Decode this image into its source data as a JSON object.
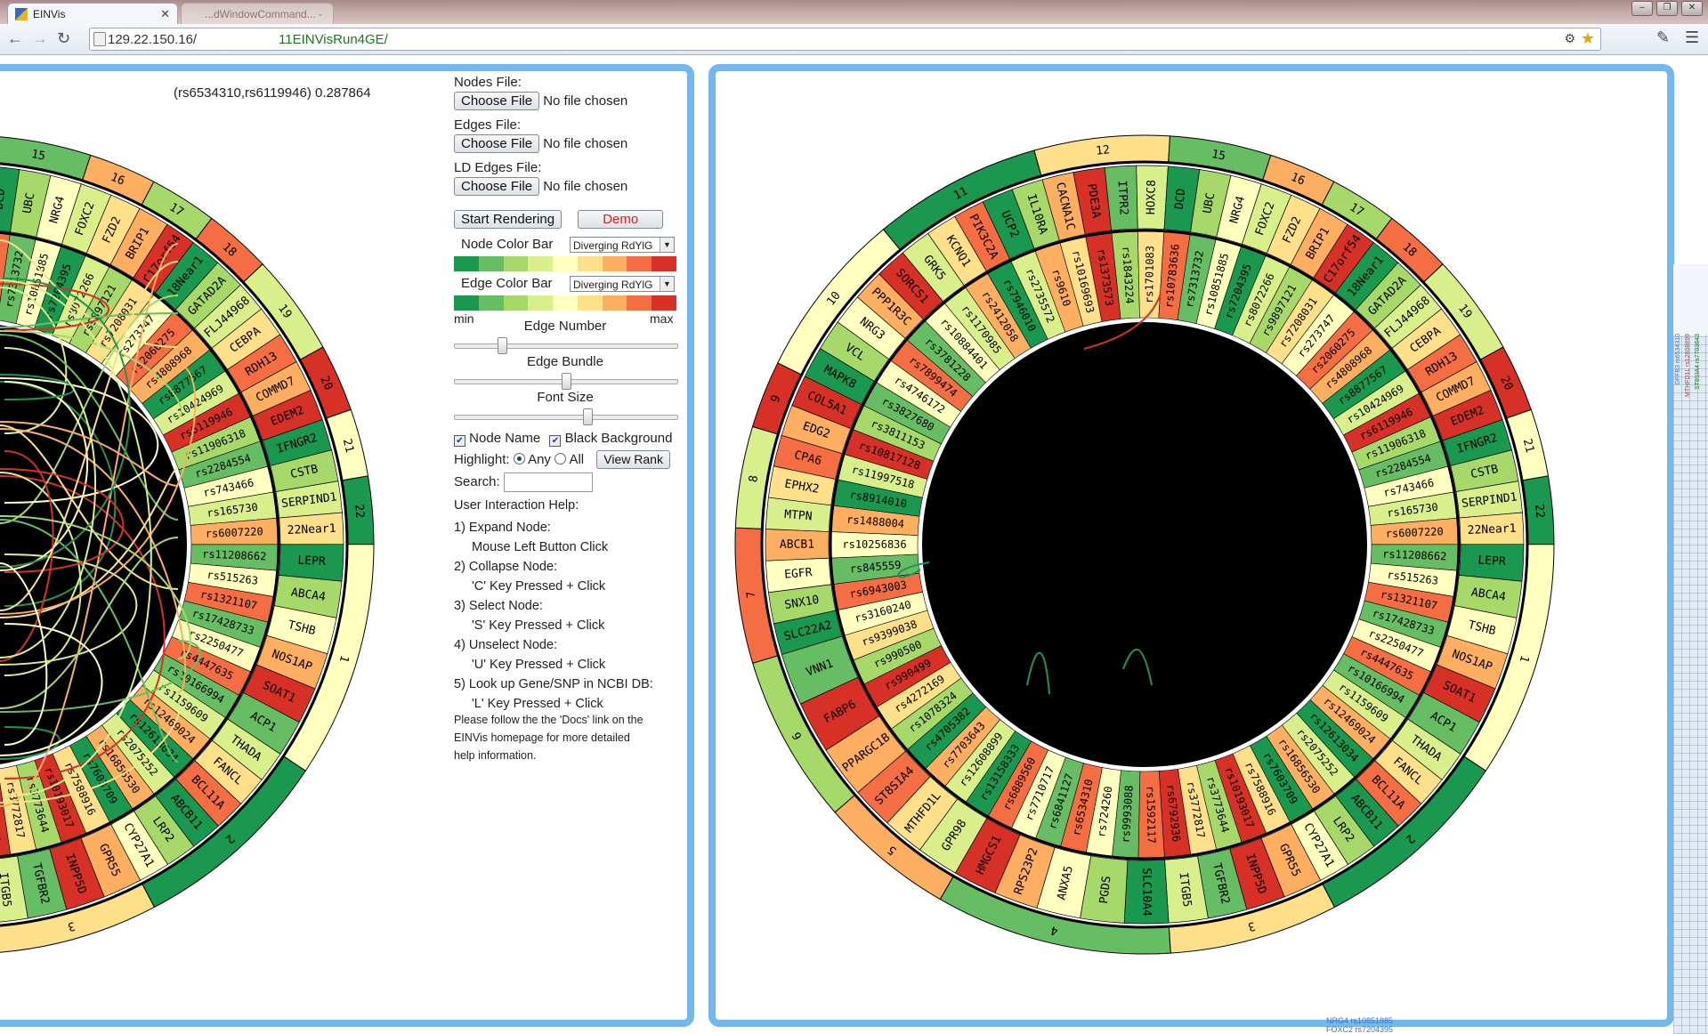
{
  "browser": {
    "active_tab_title": "EINVis",
    "background_tab_title": "...dWindowCommand... - Eclipse",
    "url_host": "129.22.150.16/",
    "url_path": "11EINVisRun4GE/"
  },
  "left_view": {
    "edge_label": "(rs6534310,rs6119946) 0.287864"
  },
  "panel": {
    "nodes_file_label": "Nodes File:",
    "edges_file_label": "Edges File:",
    "ld_edges_file_label": "LD Edges File:",
    "choose_file": "Choose File",
    "no_file": "No file chosen",
    "start_rendering": "Start Rendering",
    "demo": "Demo",
    "node_color_bar_label": "Node Color Bar",
    "edge_color_bar_label": "Edge Color Bar",
    "color_scheme": "Diverging RdYlG",
    "min_label": "min",
    "max_label": "max",
    "edge_number_label": "Edge Number",
    "edge_bundle_label": "Edge Bundle",
    "font_size_label": "Font Size",
    "edge_number_value": 0.2,
    "edge_bundle_value": 0.5,
    "font_size_value": 0.6,
    "node_name_label": "Node Name",
    "black_background_label": "Black Background",
    "node_name_checked": true,
    "black_background_checked": true,
    "highlight_label": "Highlight:",
    "any_label": "Any",
    "all_label": "All",
    "highlight_selected": "Any",
    "view_rank": "View Rank",
    "search_label": "Search:",
    "help_title": "User Interaction Help:",
    "help": [
      {
        "step": "1) Expand Node:",
        "action": "Mouse Left Button Click"
      },
      {
        "step": "2) Collapse Node:",
        "action": "'C' Key Pressed + Click"
      },
      {
        "step": "3) Select Node:",
        "action": "'S' Key Pressed + Click"
      },
      {
        "step": "4) Unselect Node:",
        "action": "'U' Key Pressed + Click"
      },
      {
        "step": "5) Look up Gene/SNP in NCBI DB:",
        "action": "'L' Key Pressed + Click"
      }
    ],
    "help_footer_1": "Please follow the the 'Docs' link on the",
    "help_footer_2": "EINVis homepage for more detailed",
    "help_footer_3": "help information."
  },
  "colors": {
    "scale": [
      "#1a9850",
      "#66bd63",
      "#a6d96a",
      "#d9ef8b",
      "#ffffbf",
      "#fee08b",
      "#fdae61",
      "#f46d43",
      "#d73027"
    ],
    "frame": "#70b8ef",
    "link_path": "#1a7a1a",
    "demo_text": "#e01b1b"
  },
  "circle": {
    "chromosomes": [
      {
        "label": "1",
        "genes": [
          "LEPR",
          "ABCA4",
          "TSHB",
          "NOS1AP",
          "SOAT1",
          "ACP1"
        ],
        "snps": [
          "rs11208662",
          "rs515263",
          "rs1321107",
          "rs17428733",
          "rs2250477",
          "rs4447635",
          "rs10166994"
        ]
      },
      {
        "label": "2",
        "genes": [
          "THADA",
          "FANCL",
          "BCL11A",
          "ABCB11",
          "LRP2",
          "CYP27A1"
        ],
        "snps": [
          "rs1159609",
          "rs12469024",
          "rs12613034",
          "rs2075252",
          "rs16856530",
          "rs7603709"
        ]
      },
      {
        "label": "3",
        "genes": [
          "GPR55",
          "INPP5D",
          "TGFBR2",
          "ITGB5"
        ],
        "snps": [
          "rs7588916",
          "rs10193017",
          "rs3773644",
          "rs3772817",
          "rs6792936"
        ]
      },
      {
        "label": "4",
        "genes": [
          "SLC10A4",
          "PGDS",
          "ANXA5",
          "RPS23P2",
          "HMGCS1"
        ],
        "snps": [
          "rs1592117",
          "rs9993088",
          "rs724260",
          "rs6534310",
          "rs6841127",
          "rs7710717",
          "rs6889560"
        ]
      },
      {
        "label": "5",
        "genes": [
          "GPR98",
          "MTHFD1L",
          "ST8SIA4"
        ],
        "snps": [
          "rs13158333",
          "rs12608899",
          "rs7703643",
          "rs4705382"
        ]
      },
      {
        "label": "6",
        "genes": [
          "PPARGC1B",
          "FABP6",
          "VNN1"
        ],
        "snps": [
          "rs1078324",
          "rs4272169",
          "rs990499",
          "rs990500",
          "rs9399038"
        ]
      },
      {
        "label": "7",
        "genes": [
          "SLC22A2",
          "SNX10",
          "EGFR",
          "ABCB1"
        ],
        "snps": [
          "rs3160240",
          "rs6943003",
          "rs845559",
          "rs10256836"
        ]
      },
      {
        "label": "8",
        "genes": [
          "MTPN",
          "EPHX2",
          "CPA6"
        ],
        "snps": [
          "rs1488004",
          "rs8914010",
          "rs11997518"
        ]
      },
      {
        "label": "9",
        "genes": [
          "EDG2",
          "COL5A1"
        ],
        "snps": [
          "rs10817128",
          "rs3811153"
        ]
      },
      {
        "label": "10",
        "genes": [
          "MAPK8",
          "VCL",
          "NRG3",
          "PPP1R3C",
          "SORCS1"
        ],
        "snps": [
          "rs3827680",
          "rs4746172",
          "rs7899474",
          "rs3781228",
          "rs10884401"
        ]
      },
      {
        "label": "11",
        "genes": [
          "GRK5",
          "KCNQ1",
          "PIK3C2A",
          "UCP2",
          "IL10RA"
        ],
        "snps": [
          "rs1170985",
          "rs2412058",
          "rs7946010",
          "rs2735572",
          "rs9610"
        ]
      },
      {
        "label": "12",
        "genes": [
          "CACNA1C",
          "PDE3A",
          "ITPR2",
          "HOXC8"
        ],
        "snps": [
          "rs10169693",
          "rs1373573",
          "rs1843224",
          "rs1701083"
        ]
      },
      {
        "label": "15",
        "genes": [
          "DCD",
          "UBC",
          "NRG4"
        ],
        "snps": [
          "rs10783636",
          "rs7313732",
          "rs10851885"
        ]
      },
      {
        "label": "16",
        "genes": [
          "FOXC2",
          "FZD2"
        ],
        "snps": [
          "rs7204395",
          "rs8072266"
        ]
      },
      {
        "label": "17",
        "genes": [
          "BRIP1",
          "C17orf54"
        ],
        "snps": [
          "rs9897121",
          "rs7208031"
        ]
      },
      {
        "label": "18",
        "genes": [
          "18Near1",
          "GATAD2A"
        ],
        "snps": [
          "rs273747",
          "rs2060275"
        ]
      },
      {
        "label": "19",
        "genes": [
          "FLJ44968",
          "CEBPA",
          "RDH13"
        ],
        "snps": [
          "rs4808968",
          "rs8877567",
          "rs10424969"
        ]
      },
      {
        "label": "20",
        "genes": [
          "COMMD7",
          "EDEM2"
        ],
        "snps": [
          "rs6119946",
          "rs11906318"
        ]
      },
      {
        "label": "21",
        "genes": [
          "IFNGR2",
          "CSTB"
        ],
        "snps": [
          "rs2284554",
          "rs743466"
        ]
      },
      {
        "label": "22",
        "genes": [
          "SERPIND1",
          "22Near1"
        ],
        "snps": [
          "rs165730",
          "rs6007220"
        ]
      }
    ]
  },
  "right_strip": {
    "labels": [
      "DFFB3 rs6534310",
      "MTHFD1L rs12608899",
      "ST8SIA4 rs7703643"
    ],
    "bottom_1": "NRG4 rs10851885",
    "bottom_2": "FOXC2 rs7204395"
  }
}
